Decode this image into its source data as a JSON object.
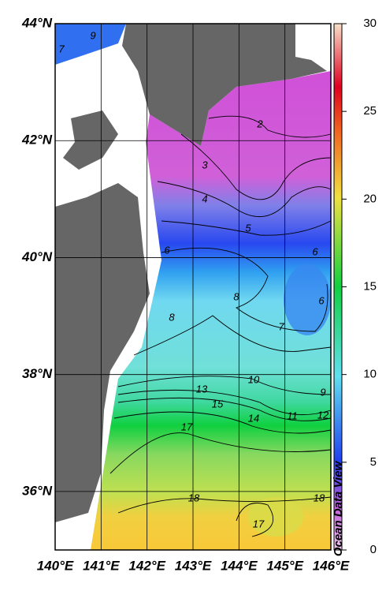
{
  "map": {
    "xlim": [
      140,
      146
    ],
    "ylim": [
      35,
      44
    ],
    "xticks": [
      {
        "value": 140,
        "label": "140°E"
      },
      {
        "value": 141,
        "label": "141°E"
      },
      {
        "value": 142,
        "label": "142°E"
      },
      {
        "value": 143,
        "label": "143°E"
      },
      {
        "value": 144,
        "label": "144°E"
      },
      {
        "value": 145,
        "label": "145°E"
      },
      {
        "value": 146,
        "label": "146°E"
      }
    ],
    "yticks": [
      {
        "value": 36,
        "label": "36°N"
      },
      {
        "value": 38,
        "label": "38°N"
      },
      {
        "value": 40,
        "label": "40°N"
      },
      {
        "value": 42,
        "label": "42°N"
      },
      {
        "value": 44,
        "label": "44°N"
      }
    ],
    "colorbar": {
      "lim": [
        0,
        30
      ],
      "ticks": [
        0,
        5,
        10,
        15,
        20,
        25,
        30
      ]
    },
    "contour_labels": [
      2,
      3,
      4,
      5,
      6,
      6,
      6,
      8,
      8,
      7,
      10,
      9,
      13,
      15,
      14,
      11,
      12,
      17,
      18,
      18,
      17,
      9,
      7
    ],
    "watermark": "Ocean Data View"
  }
}
